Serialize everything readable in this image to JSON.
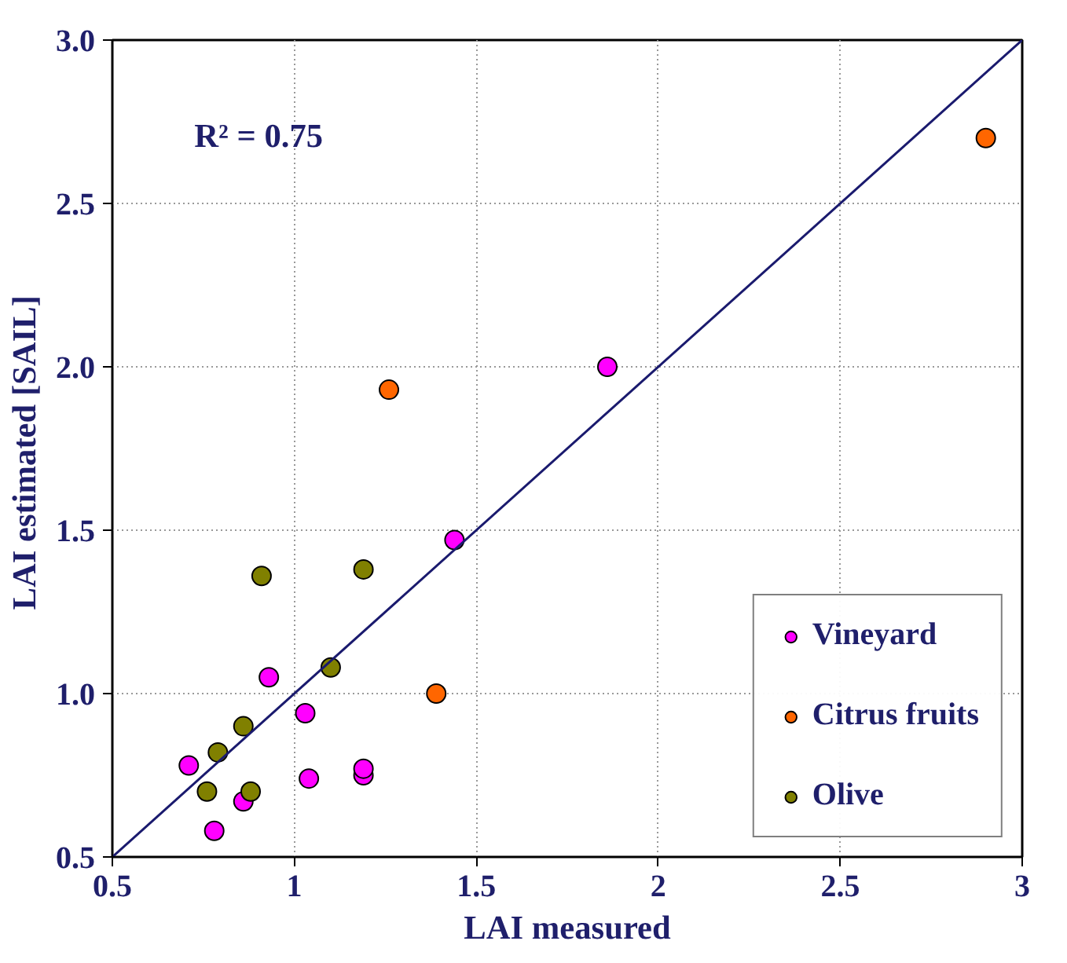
{
  "chart_data": {
    "type": "scatter",
    "xlabel": "LAI measured",
    "ylabel": "LAI  estimated [SAIL]",
    "annotations": [
      "R² = 0.75"
    ],
    "xlim": [
      0.5,
      3
    ],
    "ylim": [
      0.5,
      3
    ],
    "xticks": [
      0.5,
      1,
      1.5,
      2,
      2.5,
      3
    ],
    "yticks": [
      0.5,
      {
        "value": 1,
        "label": "1.0"
      },
      1.5,
      {
        "value": 2,
        "label": "2.0"
      },
      2.5,
      {
        "value": 3,
        "label": "3.0"
      }
    ],
    "grid": true,
    "legend": "bottom right",
    "marker": "circle",
    "series": [
      {
        "name": "Vineyard",
        "color": "#ff00ff",
        "x": [
          0.71,
          0.78,
          0.86,
          0.93,
          1.03,
          1.04,
          1.19,
          1.19,
          1.44,
          1.86
        ],
        "values": [
          0.78,
          0.58,
          0.67,
          1.05,
          0.94,
          0.74,
          0.75,
          0.77,
          1.47,
          2.0
        ]
      },
      {
        "name": "Citrus fruits",
        "color": "#ff6600",
        "x": [
          1.26,
          1.39,
          2.9
        ],
        "values": [
          1.93,
          1.0,
          2.7
        ]
      },
      {
        "name": "Olive",
        "color": "#808000",
        "x": [
          0.76,
          0.79,
          0.86,
          0.88,
          0.91,
          1.1,
          1.19
        ],
        "values": [
          0.7,
          0.82,
          0.9,
          0.7,
          1.36,
          1.08,
          1.38
        ]
      },
      {
        "type": "line",
        "marker": "none",
        "color": "#1a1a6e",
        "x": [
          0.5,
          3
        ],
        "values": [
          0.5,
          3
        ]
      }
    ]
  }
}
